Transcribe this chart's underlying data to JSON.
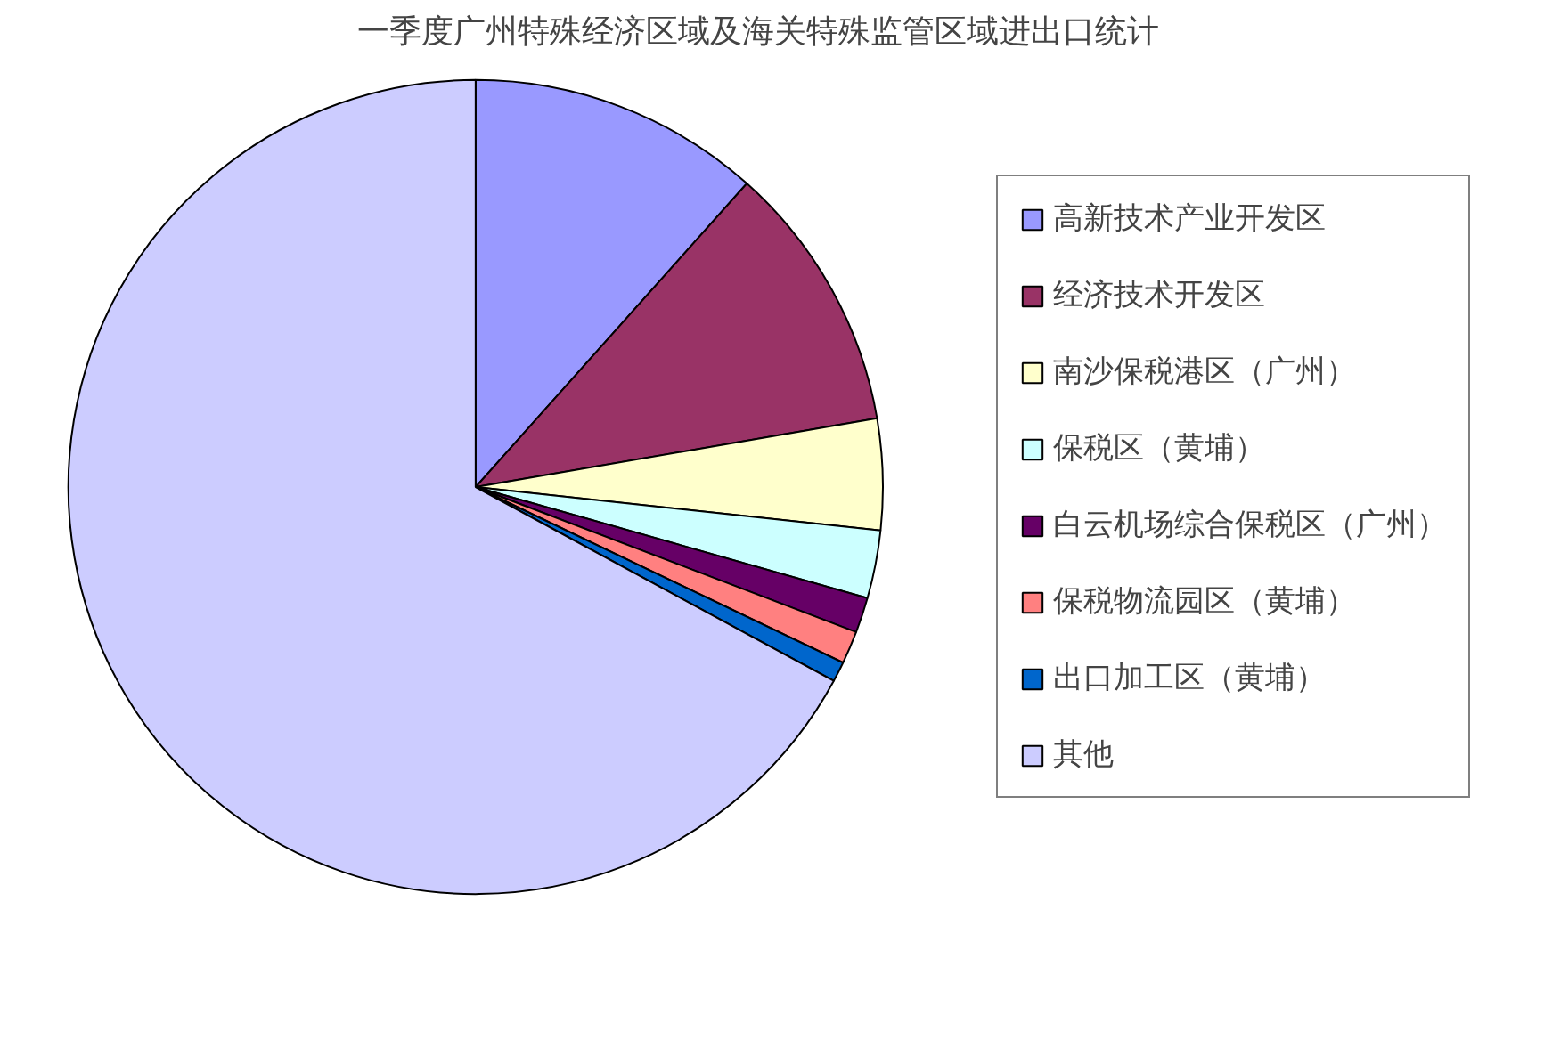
{
  "chart_data": {
    "type": "pie",
    "title": "一季度广州特殊经济区域及海关特殊监管区域进出口统计",
    "categories": [
      "高新技术产业开发区",
      "经济技术开发区",
      "南沙保税港区（广州）",
      "保税区（黄埔）",
      "白云机场综合保税区（广州）",
      "保税物流园区（黄埔）",
      "出口加工区（黄埔）",
      "其他"
    ],
    "values": [
      11.6,
      10.7,
      4.4,
      2.7,
      1.4,
      1.3,
      0.8,
      67.1
    ],
    "colors": [
      "#9999ff",
      "#993366",
      "#ffffcc",
      "#ccffff",
      "#660066",
      "#ff8080",
      "#0066cc",
      "#ccccff"
    ],
    "legend": "right"
  }
}
